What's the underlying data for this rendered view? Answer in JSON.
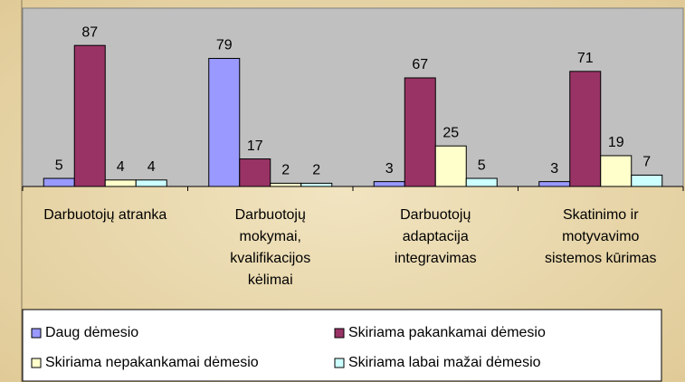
{
  "chart_data": {
    "type": "bar",
    "categories": [
      [
        "Darbuotojų atranka"
      ],
      [
        "Darbuotojų",
        "mokymai,",
        "kvalifikacijos",
        "kėlimai"
      ],
      [
        "Darbuotojų",
        "adaptacija",
        "integravimas"
      ],
      [
        "Skatinimo ir",
        "motyvavimo",
        "sistemos kūrimas"
      ]
    ],
    "series": [
      {
        "name": "Daug dėmesio",
        "color": "#9999ff",
        "values": [
          5,
          79,
          3,
          3
        ]
      },
      {
        "name": "Skiriama pakankamai dėmesio",
        "color": "#993366",
        "values": [
          87,
          17,
          67,
          71
        ]
      },
      {
        "name": "Skiriama nepakankamai dėmesio",
        "color": "#ffffcc",
        "values": [
          4,
          2,
          25,
          19
        ]
      },
      {
        "name": "Skiriama labai mažai dėmesio",
        "color": "#ccffff",
        "values": [
          4,
          2,
          5,
          7
        ]
      }
    ],
    "ylim": [
      0,
      110
    ],
    "plot_color": "#c0c0c0",
    "legend": "bottom"
  }
}
